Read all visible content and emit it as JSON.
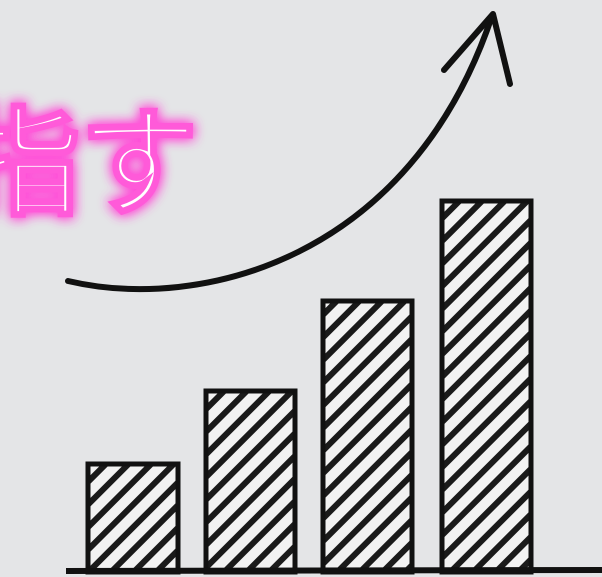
{
  "caption": "指す"
}
